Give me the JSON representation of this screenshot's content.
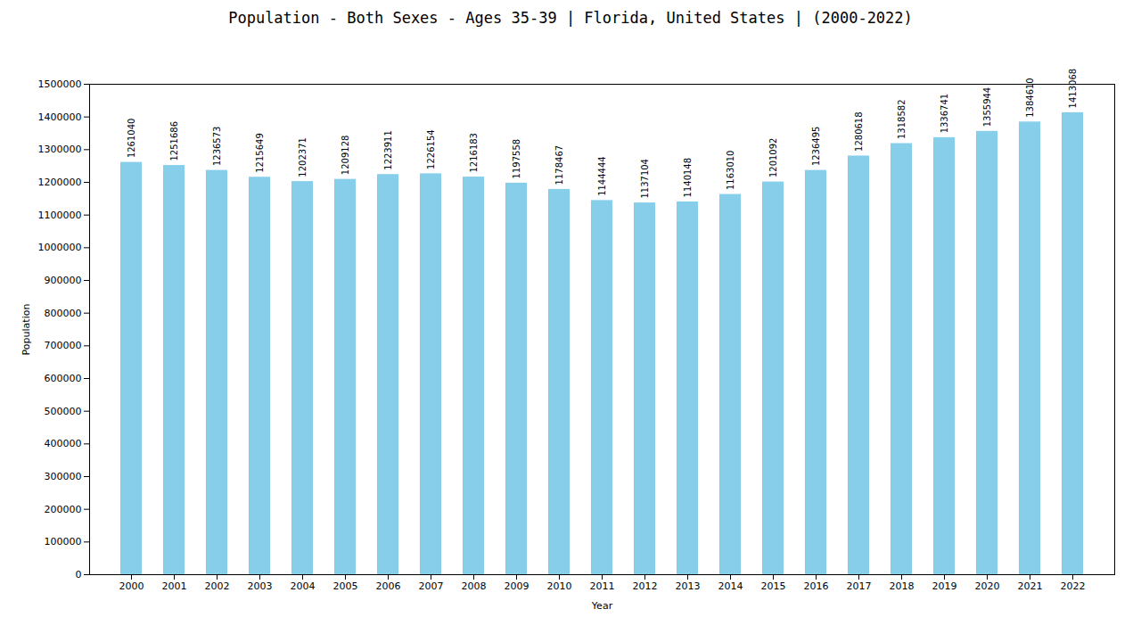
{
  "chart_data": {
    "type": "bar",
    "title": "Population - Both Sexes - Ages 35-39 | Florida, United States |  (2000-2022)",
    "xlabel": "Year",
    "ylabel": "Population",
    "categories": [
      "2000",
      "2001",
      "2002",
      "2003",
      "2004",
      "2005",
      "2006",
      "2007",
      "2008",
      "2009",
      "2010",
      "2011",
      "2012",
      "2013",
      "2014",
      "2015",
      "2016",
      "2017",
      "2018",
      "2019",
      "2020",
      "2021",
      "2022"
    ],
    "values": [
      1261040,
      1251686,
      1236573,
      1215649,
      1202371,
      1209128,
      1223911,
      1226154,
      1216183,
      1197558,
      1178467,
      1144444,
      1137104,
      1140148,
      1163010,
      1201092,
      1236495,
      1280618,
      1318582,
      1336741,
      1355944,
      1384610,
      1413068
    ],
    "color": "#87ceeb",
    "ylim": [
      0,
      1500000
    ],
    "yticks": [
      0,
      100000,
      200000,
      300000,
      400000,
      500000,
      600000,
      700000,
      800000,
      900000,
      1000000,
      1100000,
      1200000,
      1300000,
      1400000,
      1500000
    ],
    "grid": false,
    "data_labels": true
  }
}
